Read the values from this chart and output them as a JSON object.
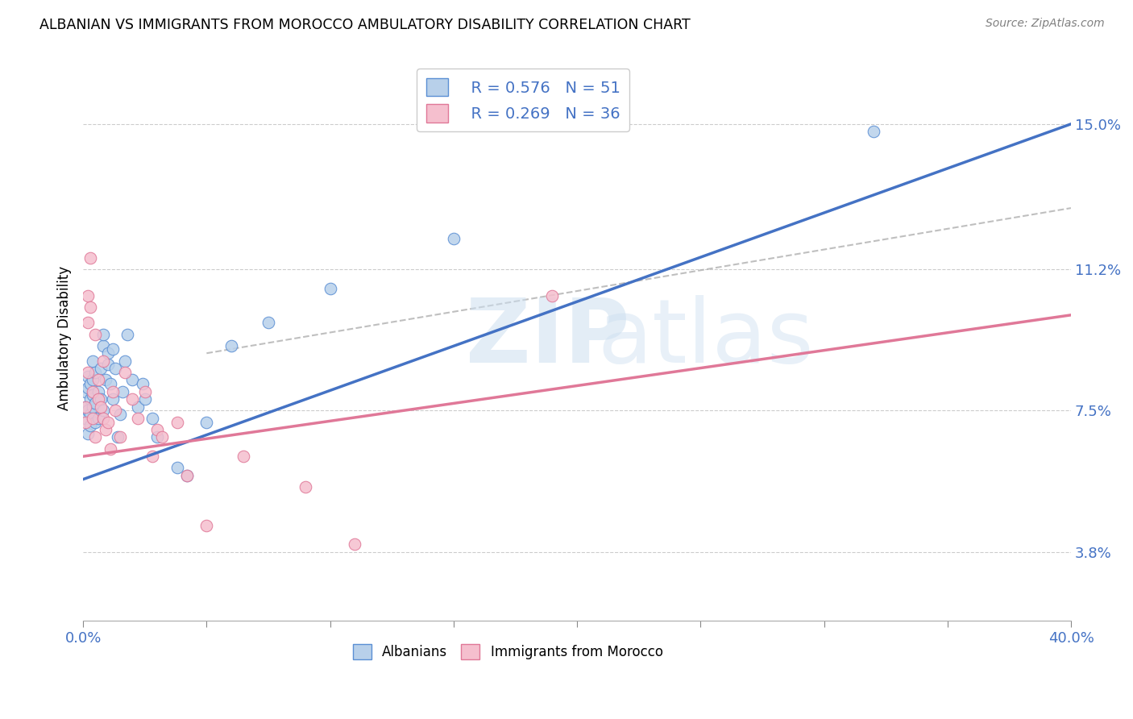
{
  "title": "ALBANIAN VS IMMIGRANTS FROM MOROCCO AMBULATORY DISABILITY CORRELATION CHART",
  "source": "Source: ZipAtlas.com",
  "ylabel": "Ambulatory Disability",
  "ytick_labels": [
    "3.8%",
    "7.5%",
    "11.2%",
    "15.0%"
  ],
  "ytick_values": [
    0.038,
    0.075,
    0.112,
    0.15
  ],
  "xlim": [
    0.0,
    0.4
  ],
  "ylim": [
    0.02,
    0.168
  ],
  "legend_r1": "R = 0.576",
  "legend_n1": "N = 51",
  "legend_r2": "R = 0.269",
  "legend_n2": "N = 36",
  "color_albanian_fill": "#b8d0ea",
  "color_albanian_edge": "#5b8fd4",
  "color_morocco_fill": "#f5bfce",
  "color_morocco_edge": "#e07898",
  "color_line_albanian": "#4472C4",
  "color_line_morocco": "#e07898",
  "color_dashed": "#b0b0b0",
  "blue_line_x0": 0.0,
  "blue_line_y0": 0.057,
  "blue_line_x1": 0.4,
  "blue_line_y1": 0.15,
  "pink_line_x0": 0.0,
  "pink_line_y0": 0.063,
  "pink_line_x1": 0.4,
  "pink_line_y1": 0.1,
  "dash_line_x0": 0.05,
  "dash_line_y0": 0.09,
  "dash_line_x1": 0.4,
  "dash_line_y1": 0.128,
  "albanians_x": [
    0.001,
    0.001,
    0.001,
    0.002,
    0.002,
    0.002,
    0.002,
    0.003,
    0.003,
    0.003,
    0.003,
    0.004,
    0.004,
    0.004,
    0.004,
    0.005,
    0.005,
    0.005,
    0.006,
    0.006,
    0.007,
    0.007,
    0.008,
    0.008,
    0.008,
    0.009,
    0.01,
    0.01,
    0.011,
    0.012,
    0.012,
    0.013,
    0.014,
    0.015,
    0.016,
    0.017,
    0.018,
    0.02,
    0.022,
    0.024,
    0.025,
    0.028,
    0.03,
    0.038,
    0.042,
    0.05,
    0.06,
    0.075,
    0.1,
    0.15,
    0.32
  ],
  "albanians_y": [
    0.076,
    0.08,
    0.073,
    0.081,
    0.075,
    0.069,
    0.084,
    0.078,
    0.082,
    0.071,
    0.074,
    0.079,
    0.076,
    0.083,
    0.088,
    0.072,
    0.077,
    0.085,
    0.073,
    0.08,
    0.086,
    0.078,
    0.092,
    0.095,
    0.075,
    0.083,
    0.09,
    0.087,
    0.082,
    0.091,
    0.078,
    0.086,
    0.068,
    0.074,
    0.08,
    0.088,
    0.095,
    0.083,
    0.076,
    0.082,
    0.078,
    0.073,
    0.068,
    0.06,
    0.058,
    0.072,
    0.092,
    0.098,
    0.107,
    0.12,
    0.148
  ],
  "morocco_x": [
    0.001,
    0.001,
    0.002,
    0.002,
    0.002,
    0.003,
    0.003,
    0.004,
    0.004,
    0.005,
    0.005,
    0.006,
    0.006,
    0.007,
    0.008,
    0.008,
    0.009,
    0.01,
    0.011,
    0.012,
    0.013,
    0.015,
    0.017,
    0.02,
    0.022,
    0.025,
    0.028,
    0.03,
    0.032,
    0.038,
    0.042,
    0.05,
    0.065,
    0.09,
    0.11,
    0.19
  ],
  "morocco_y": [
    0.076,
    0.072,
    0.085,
    0.105,
    0.098,
    0.102,
    0.115,
    0.073,
    0.08,
    0.068,
    0.095,
    0.083,
    0.078,
    0.076,
    0.088,
    0.073,
    0.07,
    0.072,
    0.065,
    0.08,
    0.075,
    0.068,
    0.085,
    0.078,
    0.073,
    0.08,
    0.063,
    0.07,
    0.068,
    0.072,
    0.058,
    0.045,
    0.063,
    0.055,
    0.04,
    0.105
  ]
}
